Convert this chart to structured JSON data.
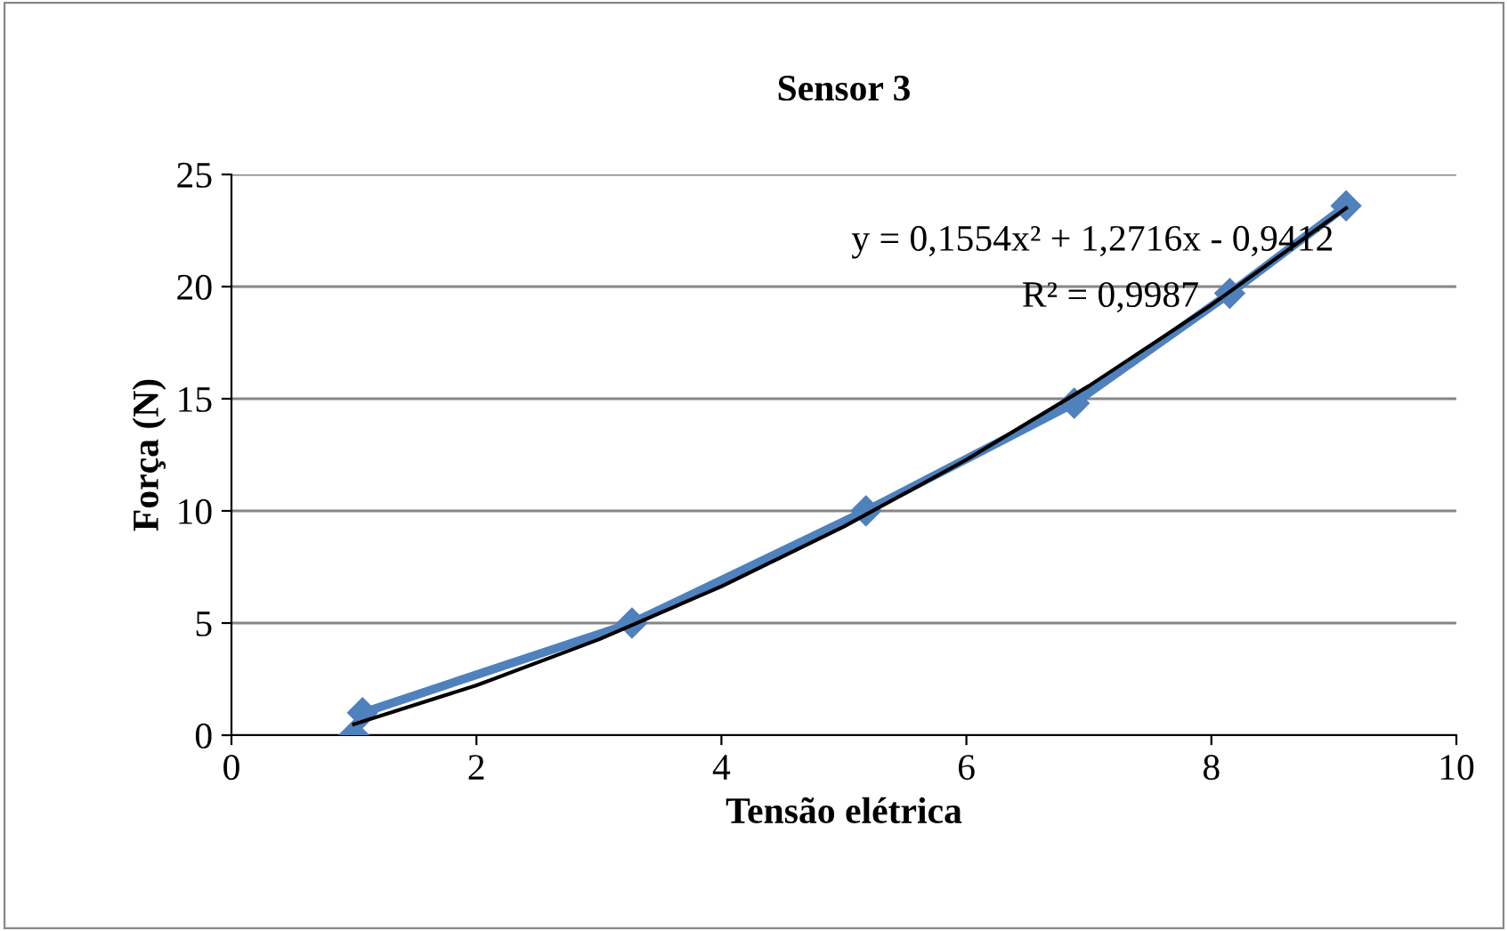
{
  "chart_data": {
    "type": "line",
    "title": "Sensor 3",
    "xlabel": "Tensão elétrica",
    "ylabel": "Força (N)",
    "xlim": [
      0,
      10
    ],
    "xticks": [
      0,
      2,
      4,
      6,
      8,
      10
    ],
    "ylim": [
      0,
      25
    ],
    "yticks": [
      0,
      5,
      10,
      15,
      20,
      25
    ],
    "grid": "y",
    "marker": "diamond",
    "series": [
      {
        "color": "#4f81bd",
        "x": [
          1.0,
          1.07,
          3.27,
          5.18,
          6.88,
          8.15,
          9.1
        ],
        "values": [
          0,
          1,
          5,
          10,
          14.8,
          19.7,
          23.6
        ]
      },
      {
        "color": "#000000",
        "marker": "none",
        "x": [
          1,
          2,
          3,
          4,
          5,
          6,
          7,
          8,
          9.1
        ],
        "values": [
          0.49,
          2.22,
          4.27,
          6.63,
          9.3,
          12.28,
          15.57,
          19.18,
          23.5
        ]
      }
    ],
    "annotations": [
      "y = 0,1554x² + 1,2716x - 0,9412",
      "R² = 0,9987"
    ]
  }
}
